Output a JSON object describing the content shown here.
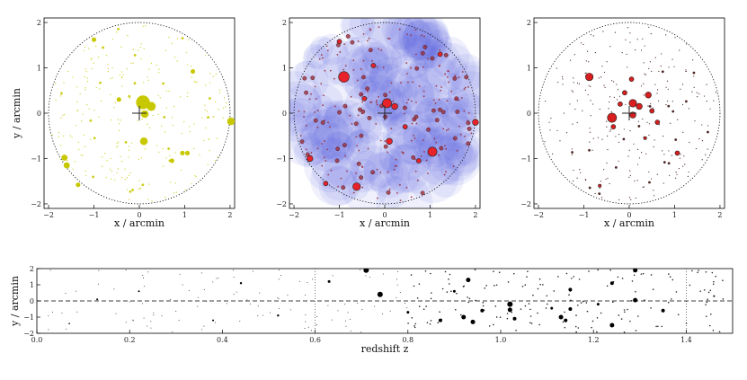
{
  "chart_data": [
    {
      "type": "scatter",
      "panel": "top-left",
      "xlabel": "x / arcmin",
      "ylabel": "y / arcmin",
      "xlim": [
        -2.1,
        2.1
      ],
      "ylim": [
        -2.1,
        2.1
      ],
      "xticks": [
        "−2",
        "−1",
        "0",
        "1",
        "2"
      ],
      "yticks": [
        "−2",
        "−1",
        "0",
        "1",
        "2"
      ],
      "circle_radius": 2.0,
      "center_marker": [
        0,
        0
      ],
      "marker_color": "#c8c800",
      "points": [
        {
          "x": 0.08,
          "y": 0.24,
          "s": 9
        },
        {
          "x": 0.26,
          "y": 0.15,
          "s": 6
        },
        {
          "x": 0.12,
          "y": -0.02,
          "s": 5
        },
        {
          "x": 0.1,
          "y": -0.62,
          "s": 5
        },
        {
          "x": 2.02,
          "y": -0.18,
          "s": 5
        },
        {
          "x": -1.65,
          "y": -0.98,
          "s": 4
        },
        {
          "x": -1.6,
          "y": -1.15,
          "s": 4
        },
        {
          "x": 0.95,
          "y": -0.88,
          "s": 3
        },
        {
          "x": 1.06,
          "y": -0.88,
          "s": 3
        },
        {
          "x": -1.35,
          "y": -1.58,
          "s": 3
        },
        {
          "x": 1.18,
          "y": 0.92,
          "s": 3
        },
        {
          "x": -1.0,
          "y": 1.62,
          "s": 3
        },
        {
          "x": 0.72,
          "y": -1.05,
          "s": 3
        },
        {
          "x": -0.45,
          "y": 0.3,
          "s": 3
        }
      ]
    },
    {
      "type": "scatter",
      "panel": "top-middle",
      "xlabel": "x / arcmin",
      "ylabel": "",
      "xlim": [
        -2.1,
        2.1
      ],
      "ylim": [
        -2.1,
        2.1
      ],
      "xticks": [
        "−2",
        "−1",
        "0",
        "1",
        "2"
      ],
      "yticks": [
        "−2",
        "−1",
        "0",
        "1",
        "2"
      ],
      "circle_radius": 2.0,
      "center_marker": [
        0,
        0
      ],
      "marker_color": "#e8222a",
      "halo_color": "#4a5ae0",
      "points": [
        {
          "x": -0.9,
          "y": 0.8,
          "s": 7
        },
        {
          "x": 0.05,
          "y": 0.22,
          "s": 6
        },
        {
          "x": 1.05,
          "y": -0.85,
          "s": 6
        },
        {
          "x": -0.62,
          "y": -1.62,
          "s": 5
        },
        {
          "x": 2.0,
          "y": -0.2,
          "s": 4
        },
        {
          "x": -1.65,
          "y": -1.0,
          "s": 4
        },
        {
          "x": 0.22,
          "y": 0.15,
          "s": 4
        },
        {
          "x": 0.1,
          "y": -0.62,
          "s": 4
        },
        {
          "x": -1.3,
          "y": -1.55,
          "s": 3
        },
        {
          "x": 1.22,
          "y": 1.3,
          "s": 3
        },
        {
          "x": -0.25,
          "y": 1.05,
          "s": 3
        },
        {
          "x": 0.45,
          "y": -0.3,
          "s": 3
        },
        {
          "x": -0.45,
          "y": 0.32,
          "s": 3
        },
        {
          "x": 0.75,
          "y": -1.05,
          "s": 3
        },
        {
          "x": -1.0,
          "y": 1.58,
          "s": 3
        }
      ]
    },
    {
      "type": "scatter",
      "panel": "top-right",
      "xlabel": "x / arcmin",
      "ylabel": "",
      "xlim": [
        -2.1,
        2.1
      ],
      "ylim": [
        -2.1,
        2.1
      ],
      "xticks": [
        "−2",
        "−1",
        "0",
        "1",
        "2"
      ],
      "yticks": [
        "−2",
        "−1",
        "0",
        "1",
        "2"
      ],
      "circle_radius": 2.0,
      "center_marker": [
        0,
        0
      ],
      "marker_color": "#d81e1e",
      "points": [
        {
          "x": -0.38,
          "y": -0.1,
          "s": 6
        },
        {
          "x": 0.08,
          "y": 0.22,
          "s": 5
        },
        {
          "x": -0.88,
          "y": 0.8,
          "s": 5
        },
        {
          "x": 0.22,
          "y": 0.15,
          "s": 4
        },
        {
          "x": 0.08,
          "y": -0.04,
          "s": 4
        },
        {
          "x": 0.42,
          "y": 0.4,
          "s": 4
        },
        {
          "x": 0.5,
          "y": 0.05,
          "s": 3
        },
        {
          "x": -0.1,
          "y": 0.45,
          "s": 3
        },
        {
          "x": 0.05,
          "y": 0.75,
          "s": 3
        },
        {
          "x": 1.06,
          "y": -0.88,
          "s": 3
        },
        {
          "x": -0.35,
          "y": -0.3,
          "s": 3
        },
        {
          "x": 0.62,
          "y": -0.2,
          "s": 3
        },
        {
          "x": -0.2,
          "y": 0.2,
          "s": 3
        },
        {
          "x": -0.65,
          "y": -1.6,
          "s": 2
        },
        {
          "x": 0.35,
          "y": -0.55,
          "s": 2
        }
      ]
    },
    {
      "type": "scatter",
      "panel": "bottom",
      "xlabel": "redshift z",
      "ylabel": "y / arcmin",
      "xlim": [
        0.0,
        1.5
      ],
      "ylim": [
        -2.0,
        2.0
      ],
      "xticks": [
        "0.0",
        "0.2",
        "0.4",
        "0.6",
        "0.8",
        "1.0",
        "1.2",
        "1.4"
      ],
      "yticks": [
        "−2",
        "−1",
        "0",
        "1",
        "2"
      ],
      "vlines_dotted": [
        0.6,
        1.4
      ],
      "hline_dashed": 0,
      "marker_color": "#000000",
      "points": [
        {
          "x": 0.71,
          "y": 1.9,
          "s": 3
        },
        {
          "x": 0.74,
          "y": 0.4,
          "s": 3
        },
        {
          "x": 0.93,
          "y": 1.3,
          "s": 2.5
        },
        {
          "x": 0.92,
          "y": -1.0,
          "s": 2.5
        },
        {
          "x": 0.94,
          "y": -1.3,
          "s": 2.5
        },
        {
          "x": 0.87,
          "y": -1.2,
          "s": 2
        },
        {
          "x": 0.96,
          "y": -0.6,
          "s": 2
        },
        {
          "x": 1.02,
          "y": -0.2,
          "s": 3
        },
        {
          "x": 1.02,
          "y": -0.55,
          "s": 2.5
        },
        {
          "x": 1.03,
          "y": -1.1,
          "s": 2
        },
        {
          "x": 1.13,
          "y": -1.0,
          "s": 2.5
        },
        {
          "x": 1.14,
          "y": -1.2,
          "s": 2
        },
        {
          "x": 1.15,
          "y": 0.7,
          "s": 2
        },
        {
          "x": 1.15,
          "y": -0.5,
          "s": 2
        },
        {
          "x": 1.24,
          "y": -1.5,
          "s": 2.5
        },
        {
          "x": 1.24,
          "y": 1.1,
          "s": 2
        },
        {
          "x": 1.29,
          "y": 1.9,
          "s": 2.5
        },
        {
          "x": 1.29,
          "y": 0.05,
          "s": 2.5
        },
        {
          "x": 1.35,
          "y": -0.6,
          "s": 2
        },
        {
          "x": 1.21,
          "y": -0.2,
          "s": 1.5
        },
        {
          "x": 1.11,
          "y": -0.45,
          "s": 1.5
        },
        {
          "x": 0.9,
          "y": 0.6,
          "s": 1.5
        },
        {
          "x": 0.8,
          "y": -0.7,
          "s": 1.5
        },
        {
          "x": 0.63,
          "y": 1.2,
          "s": 1.5
        },
        {
          "x": 0.52,
          "y": -0.9,
          "s": 1.2
        },
        {
          "x": 0.44,
          "y": 1.1,
          "s": 1.2
        },
        {
          "x": 0.38,
          "y": -1.2,
          "s": 1
        },
        {
          "x": 0.22,
          "y": 0.6,
          "s": 1
        },
        {
          "x": 0.13,
          "y": 0.1,
          "s": 1
        },
        {
          "x": 0.07,
          "y": -1.4,
          "s": 0.8
        },
        {
          "x": 1.46,
          "y": 0.3,
          "s": 1
        }
      ]
    }
  ]
}
